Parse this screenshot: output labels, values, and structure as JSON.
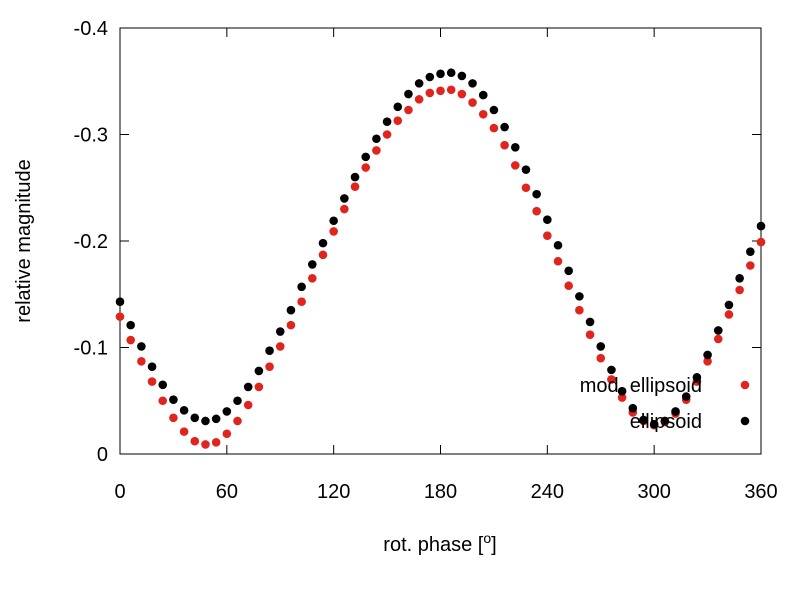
{
  "chart_data": {
    "type": "scatter",
    "title": "",
    "xlabel": "rot. phase [",
    "xlabel_unit": "o",
    "xlabel_end": "]",
    "ylabel": "relative magnitude",
    "xlim": [
      0,
      360
    ],
    "ylim": [
      -0.4,
      0
    ],
    "y_inverted": true,
    "xticks": [
      0,
      60,
      120,
      180,
      240,
      300,
      360
    ],
    "xtick_labels": [
      "0",
      "60",
      "120",
      "180",
      "240",
      "300",
      "360"
    ],
    "yticks": [
      -0.4,
      -0.3,
      -0.2,
      -0.1,
      0
    ],
    "ytick_labels": [
      "-0.4",
      "-0.3",
      "-0.2",
      "-0.1",
      "0"
    ],
    "grid": false,
    "legend_position": "bottom-right",
    "x": [
      0,
      6,
      12,
      18,
      24,
      30,
      36,
      42,
      48,
      54,
      60,
      66,
      72,
      78,
      84,
      90,
      96,
      102,
      108,
      114,
      120,
      126,
      132,
      138,
      144,
      150,
      156,
      162,
      168,
      174,
      180,
      186,
      192,
      198,
      204,
      210,
      216,
      222,
      228,
      234,
      240,
      246,
      252,
      258,
      264,
      270,
      276,
      282,
      288,
      294,
      300,
      306,
      312,
      318,
      324,
      330,
      336,
      342,
      348,
      354,
      360
    ],
    "series": [
      {
        "name": "mod. ellipsoid",
        "color": "#e0251e",
        "values": [
          -0.129,
          -0.107,
          -0.087,
          -0.068,
          -0.05,
          -0.034,
          -0.021,
          -0.012,
          -0.009,
          -0.011,
          -0.019,
          -0.031,
          -0.046,
          -0.063,
          -0.082,
          -0.101,
          -0.121,
          -0.143,
          -0.165,
          -0.187,
          -0.209,
          -0.23,
          -0.251,
          -0.269,
          -0.285,
          -0.3,
          -0.313,
          -0.323,
          -0.333,
          -0.339,
          -0.341,
          -0.342,
          -0.338,
          -0.33,
          -0.319,
          -0.306,
          -0.29,
          -0.271,
          -0.25,
          -0.228,
          -0.205,
          -0.181,
          -0.158,
          -0.135,
          -0.112,
          -0.09,
          -0.07,
          -0.053,
          -0.039,
          -0.031,
          -0.027,
          -0.03,
          -0.038,
          -0.051,
          -0.068,
          -0.087,
          -0.108,
          -0.131,
          -0.154,
          -0.177,
          -0.199
        ]
      },
      {
        "name": "ellipsoid",
        "color": "#000000",
        "values": [
          -0.143,
          -0.121,
          -0.101,
          -0.082,
          -0.065,
          -0.051,
          -0.041,
          -0.034,
          -0.031,
          -0.033,
          -0.04,
          -0.05,
          -0.063,
          -0.078,
          -0.097,
          -0.115,
          -0.135,
          -0.157,
          -0.178,
          -0.198,
          -0.219,
          -0.24,
          -0.26,
          -0.279,
          -0.296,
          -0.312,
          -0.326,
          -0.338,
          -0.348,
          -0.354,
          -0.357,
          -0.358,
          -0.355,
          -0.348,
          -0.337,
          -0.323,
          -0.307,
          -0.288,
          -0.267,
          -0.244,
          -0.22,
          -0.196,
          -0.172,
          -0.148,
          -0.124,
          -0.101,
          -0.079,
          -0.059,
          -0.043,
          -0.032,
          -0.028,
          -0.031,
          -0.04,
          -0.054,
          -0.072,
          -0.093,
          -0.116,
          -0.14,
          -0.165,
          -0.19,
          -0.214
        ]
      }
    ]
  }
}
